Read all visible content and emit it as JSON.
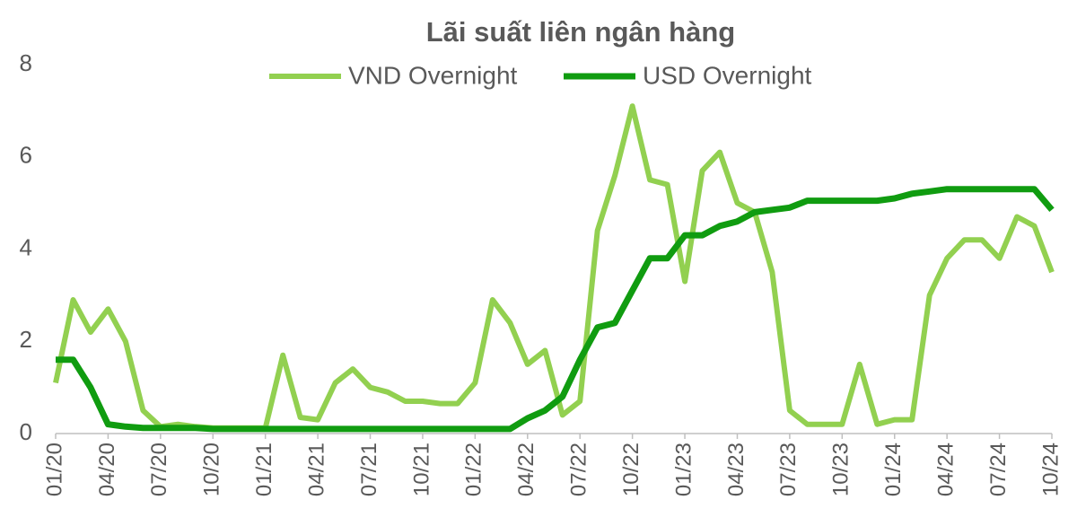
{
  "chart_data": {
    "type": "line",
    "title": "Lãi suất liên ngân hàng",
    "categories": [
      "01/20",
      null,
      null,
      "04/20",
      null,
      null,
      "07/20",
      null,
      null,
      "10/20",
      null,
      null,
      "01/21",
      null,
      null,
      "04/21",
      null,
      null,
      "07/21",
      null,
      null,
      "10/21",
      null,
      null,
      "01/22",
      null,
      null,
      "04/22",
      null,
      null,
      "07/22",
      null,
      null,
      "10/22",
      null,
      null,
      "01/23",
      null,
      null,
      "04/23",
      null,
      null,
      "07/23",
      null,
      null,
      "10/23",
      null,
      null,
      "01/24",
      null,
      null,
      "04/24",
      null,
      null,
      "07/24",
      null,
      null,
      "10/24"
    ],
    "series": [
      {
        "name": "VND Overnight",
        "color": "#92d050",
        "values": [
          1.1,
          2.9,
          2.2,
          2.7,
          2.0,
          0.5,
          0.15,
          0.2,
          0.15,
          0.12,
          0.12,
          0.12,
          0.12,
          1.7,
          0.35,
          0.3,
          1.1,
          1.4,
          1.0,
          0.9,
          0.7,
          0.7,
          0.65,
          0.65,
          1.1,
          2.9,
          2.4,
          1.5,
          1.8,
          0.4,
          0.7,
          4.4,
          5.6,
          7.1,
          5.5,
          5.4,
          3.3,
          5.7,
          6.1,
          5.0,
          4.8,
          3.5,
          0.5,
          0.2,
          0.2,
          0.2,
          1.5,
          0.2,
          0.3,
          0.3,
          3.0,
          3.8,
          4.2,
          4.2,
          3.8,
          4.7,
          4.5,
          3.5
        ]
      },
      {
        "name": "USD Overnight",
        "color": "#109c10",
        "values": [
          1.6,
          1.6,
          1.0,
          0.2,
          0.15,
          0.12,
          0.12,
          0.12,
          0.12,
          0.1,
          0.1,
          0.1,
          0.1,
          0.1,
          0.1,
          0.1,
          0.1,
          0.1,
          0.1,
          0.1,
          0.1,
          0.1,
          0.1,
          0.1,
          0.1,
          0.1,
          0.1,
          0.33,
          0.5,
          0.8,
          1.6,
          2.3,
          2.4,
          3.1,
          3.8,
          3.8,
          4.3,
          4.3,
          4.5,
          4.6,
          4.8,
          4.85,
          4.9,
          5.05,
          5.05,
          5.05,
          5.05,
          5.05,
          5.1,
          5.2,
          5.25,
          5.3,
          5.3,
          5.3,
          5.3,
          5.3,
          5.3,
          4.85
        ]
      }
    ],
    "ylim": [
      0,
      8
    ],
    "yticks": [
      0,
      2,
      4,
      6,
      8
    ],
    "grid": false
  }
}
